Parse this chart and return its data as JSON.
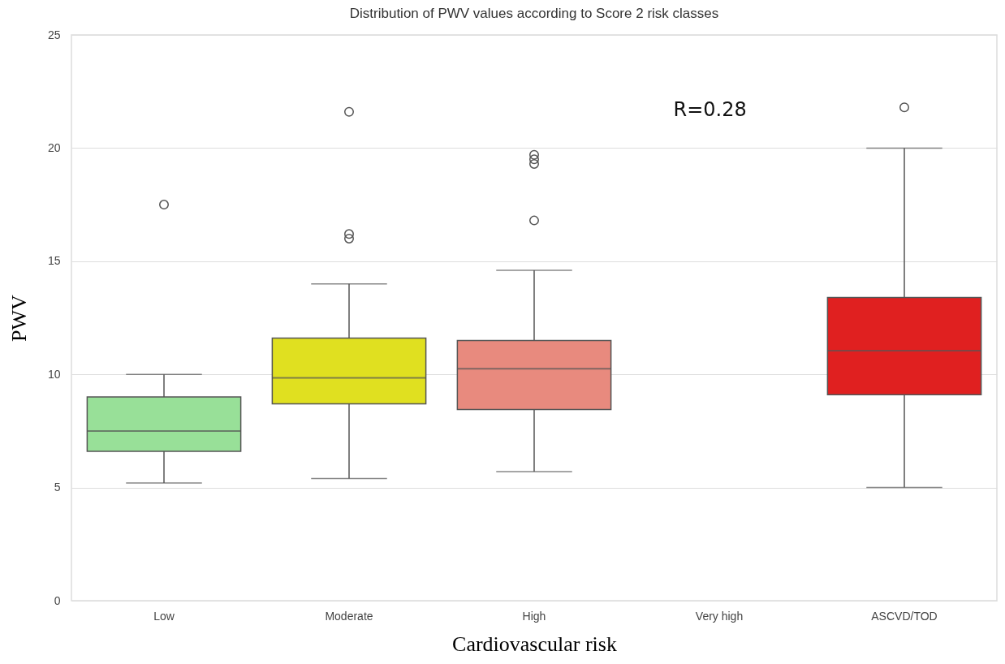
{
  "chart_data": {
    "type": "box",
    "title": "Distribution of PWV values according to Score 2 risk classes",
    "xlabel": "Cardiovascular risk",
    "ylabel": "PWV",
    "categories": [
      "Low",
      "Moderate",
      "High",
      "Very high",
      "ASCVD/TOD"
    ],
    "boxes": [
      {
        "low": 5.2,
        "q1": 6.6,
        "median": 7.5,
        "q3": 9.0,
        "high": 10.0,
        "outliers": [
          17.5
        ]
      },
      {
        "low": 5.4,
        "q1": 8.7,
        "median": 9.85,
        "q3": 11.6,
        "high": 14.0,
        "outliers": [
          21.6,
          16.2,
          16.0
        ]
      },
      {
        "low": 5.7,
        "q1": 8.45,
        "median": 10.25,
        "q3": 11.5,
        "high": 14.6,
        "outliers": [
          19.7,
          19.5,
          19.3,
          16.8
        ]
      },
      null,
      {
        "low": 5.0,
        "q1": 9.1,
        "median": 11.05,
        "q3": 13.4,
        "high": 20.0,
        "outliers": [
          21.8
        ]
      }
    ],
    "colors": [
      "#98e098",
      "#e0e020",
      "#e88a7e",
      null,
      "#e02020"
    ],
    "ylim": [
      0,
      25
    ],
    "yticks": [
      0,
      5,
      10,
      15,
      20,
      25
    ],
    "grid": "y",
    "annotations": [
      "R=0.28"
    ]
  }
}
